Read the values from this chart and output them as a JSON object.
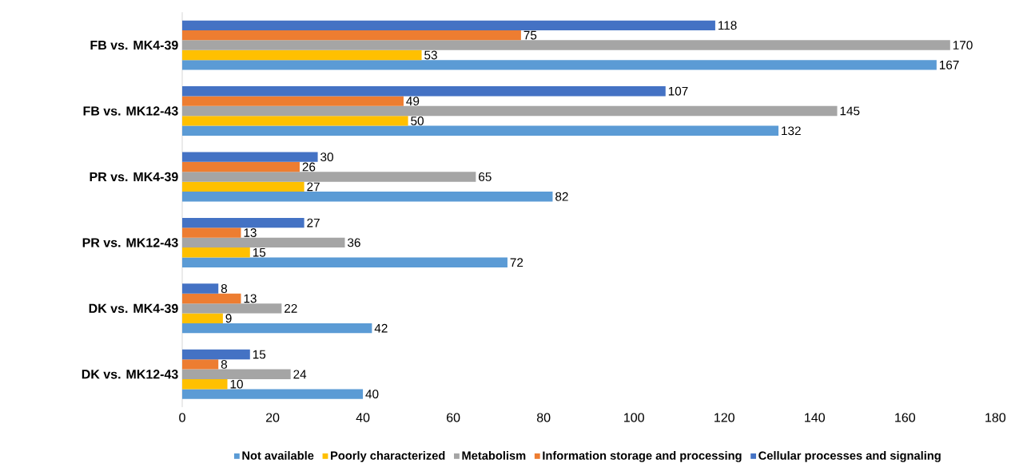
{
  "chart_data": {
    "type": "bar",
    "orientation": "horizontal",
    "categories": [
      "FB vs. MK4-39",
      "FB vs. MK12-43",
      "PR vs. MK4-39",
      "PR vs. MK12-43",
      "DK vs. MK4-39",
      "DK vs. MK12-43"
    ],
    "series": [
      {
        "name": "Not available",
        "color": "#5b9bd5",
        "values": [
          167,
          132,
          82,
          72,
          42,
          40
        ]
      },
      {
        "name": "Poorly characterized",
        "color": "#ffc000",
        "values": [
          53,
          50,
          27,
          15,
          9,
          10
        ]
      },
      {
        "name": "Metabolism",
        "color": "#a5a5a5",
        "values": [
          170,
          145,
          65,
          36,
          22,
          24
        ]
      },
      {
        "name": "Information storage and processing",
        "color": "#ed7d31",
        "values": [
          75,
          49,
          26,
          13,
          13,
          8
        ]
      },
      {
        "name": "Cellular processes and signaling",
        "color": "#4472c4",
        "values": [
          118,
          107,
          30,
          27,
          8,
          15
        ]
      }
    ],
    "xlim": [
      0,
      180
    ],
    "xticks": [
      0,
      20,
      40,
      60,
      80,
      100,
      120,
      140,
      160,
      180
    ],
    "data_labels": true,
    "legend": "bottom"
  }
}
